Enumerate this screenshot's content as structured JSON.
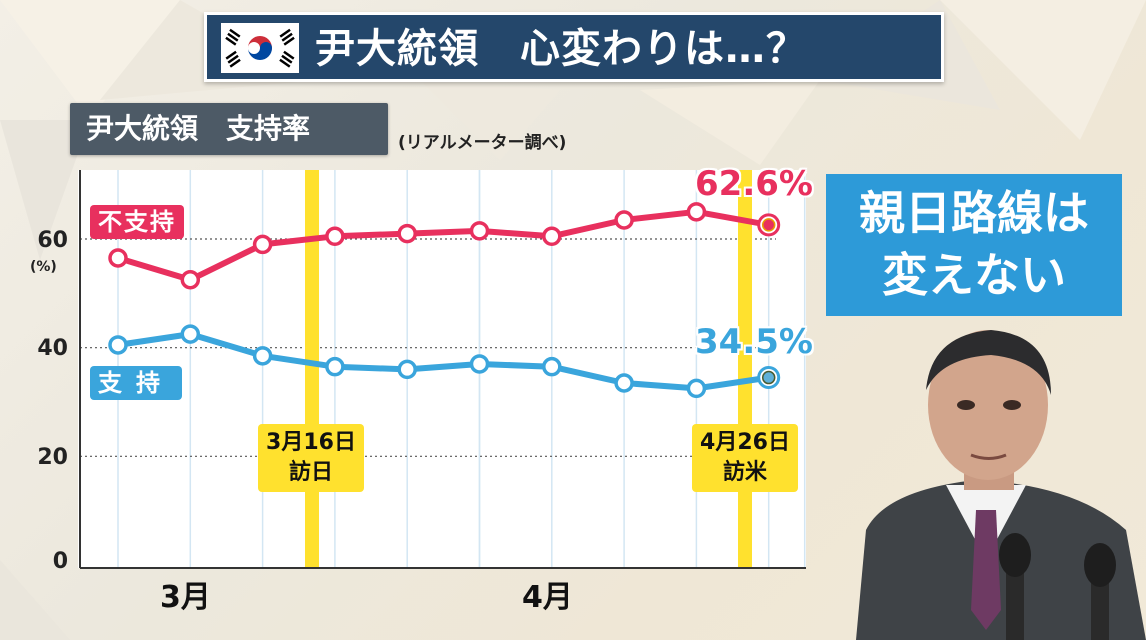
{
  "header": {
    "title": "尹大統領　心変わりは…？",
    "flag_icon": "south-korea-flag-icon"
  },
  "subtitle": {
    "label": "尹大統領　支持率",
    "source": "(リアルメーター調べ)"
  },
  "callout": {
    "line1": "親日路線は",
    "line2": "変えない"
  },
  "colors": {
    "disapprove": "#e8305e",
    "approve": "#3aa5dc",
    "event": "#ffe12e",
    "title_bg": "#24476b",
    "callout_bg": "#2d9ad8"
  },
  "chart_data": {
    "type": "line",
    "title": "尹大統領　支持率",
    "unit": "(%)",
    "ylim": [
      0,
      70
    ],
    "yticks": [
      "0",
      "20",
      "40",
      "60"
    ],
    "month_labels": [
      "3月",
      "4月"
    ],
    "series": [
      {
        "name": "不支持",
        "values": [
          56.5,
          52.5,
          59,
          60.5,
          61,
          61.5,
          60.5,
          63.5,
          65,
          62.6
        ],
        "end_label": "62.6%"
      },
      {
        "name": "支持",
        "values": [
          40.5,
          42.5,
          38.5,
          36.5,
          36,
          37,
          36.5,
          33.5,
          32.5,
          34.5
        ],
        "end_label": "34.5%"
      }
    ],
    "events": [
      {
        "date": "3月16日",
        "label": "訪日"
      },
      {
        "date": "4月26日",
        "label": "訪米"
      }
    ],
    "grid": true
  }
}
